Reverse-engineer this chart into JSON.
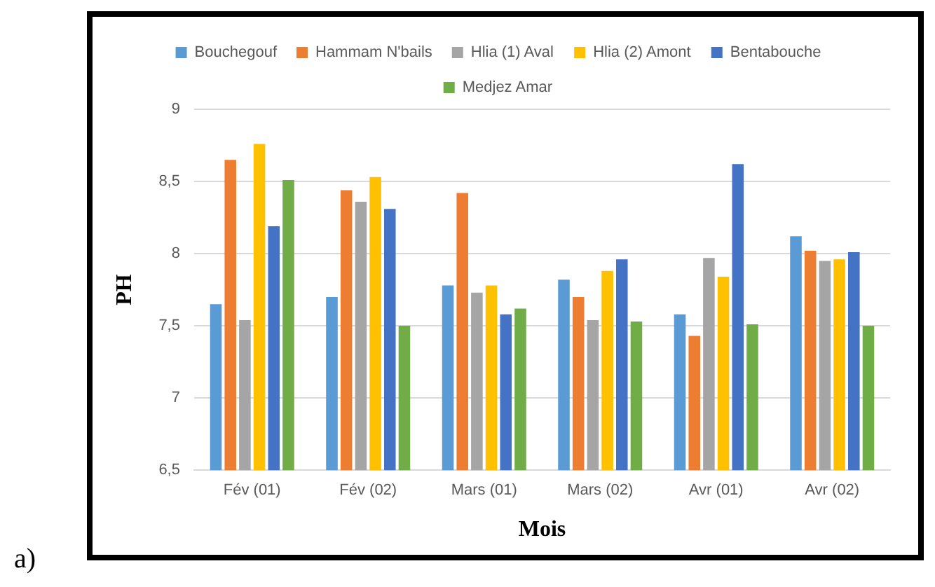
{
  "chart_data": {
    "type": "bar",
    "xlabel": "Mois",
    "ylabel": "PH",
    "categories": [
      "Fév (01)",
      "Fév (02)",
      "Mars (01)",
      "Mars (02)",
      "Avr (01)",
      "Avr (02)"
    ],
    "series": [
      {
        "name": "Bouchegouf",
        "color": "#5b9bd5",
        "values": [
          7.65,
          7.7,
          7.78,
          7.82,
          7.58,
          8.12
        ]
      },
      {
        "name": "Hammam N'bails",
        "color": "#ed7d31",
        "values": [
          8.65,
          8.44,
          8.42,
          7.7,
          7.43,
          8.02
        ]
      },
      {
        "name": "Hlia (1) Aval",
        "color": "#a5a5a5",
        "values": [
          7.54,
          8.36,
          7.73,
          7.54,
          7.97,
          7.95
        ]
      },
      {
        "name": "Hlia (2) Amont",
        "color": "#ffc000",
        "values": [
          8.76,
          8.53,
          7.78,
          7.88,
          7.84,
          7.96
        ]
      },
      {
        "name": "Bentabouche",
        "color": "#4472c4",
        "values": [
          8.19,
          8.31,
          7.58,
          7.96,
          8.62,
          8.01
        ]
      },
      {
        "name": "Medjez Amar",
        "color": "#70ad47",
        "values": [
          8.51,
          7.5,
          7.62,
          7.53,
          7.51,
          7.5
        ]
      }
    ],
    "ylim": [
      6.5,
      9
    ],
    "yticks": [
      {
        "value": 6.5,
        "label": "6,5"
      },
      {
        "value": 7,
        "label": "7"
      },
      {
        "value": 7.5,
        "label": "7,5"
      },
      {
        "value": 8,
        "label": "8"
      },
      {
        "value": 8.5,
        "label": "8,5"
      },
      {
        "value": 9,
        "label": "9"
      }
    ],
    "grid": "y",
    "legend": "top",
    "annotations": [
      "a)"
    ]
  }
}
